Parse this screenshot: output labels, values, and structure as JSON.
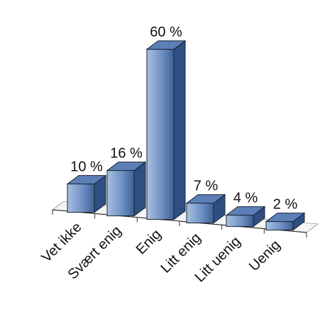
{
  "chart_data": {
    "type": "bar",
    "style": "3d-column",
    "categories": [
      "Vet ikke",
      "Svært enig",
      "Enig",
      "Litt enig",
      "Litt uenig",
      "Uenig"
    ],
    "values": [
      10,
      16,
      60,
      7,
      4,
      2
    ],
    "data_labels": [
      "10 %",
      "16 %",
      "60 %",
      "7 %",
      "4 %",
      "2 %"
    ],
    "unit": "%",
    "title": "",
    "xlabel": "",
    "ylabel": "",
    "ylim": [
      0,
      60
    ],
    "grid": false,
    "legend": "none",
    "colors": {
      "bar_front": "#6f91c4",
      "bar_front_light": "#a9c0e2",
      "bar_side": "#2f4f82",
      "bar_top": "#5c7fb8",
      "bar_outline": "#1a2433",
      "floor_line": "#333333"
    }
  }
}
